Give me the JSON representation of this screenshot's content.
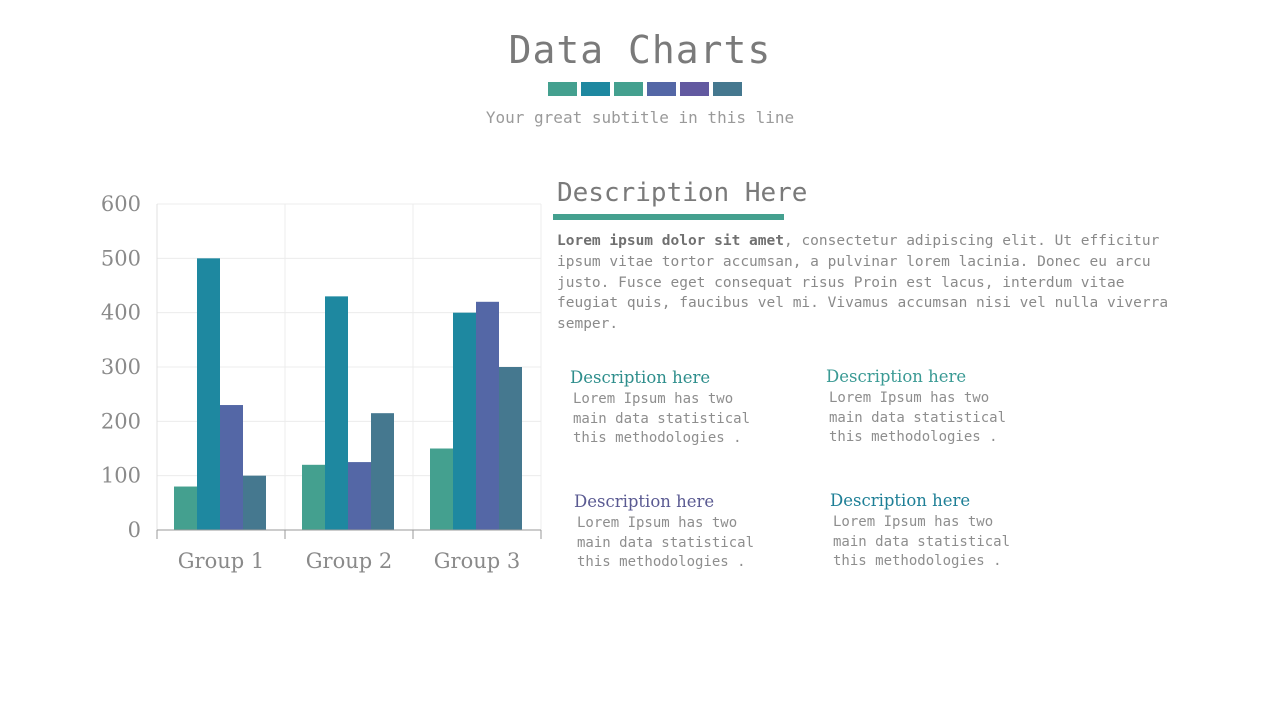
{
  "header": {
    "title": "Data Charts",
    "subtitle": "Your great subtitle in this line",
    "swatch_colors": [
      "#44a08f",
      "#1e88a0",
      "#44a08f",
      "#5467a6",
      "#6259a0",
      "#45788f"
    ]
  },
  "description": {
    "heading": "Description Here",
    "body_bold": "Lorem ipsum dolor sit amet",
    "body_rest": ", consectetur adipiscing elit. Ut efficitur ipsum vitae tortor accumsan, a pulvinar lorem lacinia. Donec eu arcu justo. Fusce eget consequat risus Proin est lacus, interdum vitae feugiat quis, faucibus vel mi.  Vivamus accumsan nisi vel nulla viverra semper."
  },
  "cards": [
    {
      "title": "Description here",
      "text": "Lorem Ipsum has two\nmain data statistical\nthis methodologies .",
      "color": "#2e8e8c"
    },
    {
      "title": "Description here",
      "text": "Lorem Ipsum has two\nmain data statistical\nthis methodologies .",
      "color": "#3a9a94"
    },
    {
      "title": "Description here",
      "text": "Lorem Ipsum has two\nmain data statistical\nthis methodologies .",
      "color": "#5a5a92"
    },
    {
      "title": "Description here",
      "text": "Lorem Ipsum has two\nmain data statistical\nthis methodologies .",
      "color": "#1e7f96"
    }
  ],
  "chart_data": {
    "type": "bar",
    "categories": [
      "Group 1",
      "Group 2",
      "Group 3"
    ],
    "series": [
      {
        "values": [
          80,
          120,
          150
        ],
        "color": "#44a08f"
      },
      {
        "values": [
          500,
          430,
          400
        ],
        "color": "#1e88a0"
      },
      {
        "values": [
          230,
          125,
          420
        ],
        "color": "#5467a6"
      },
      {
        "values": [
          100,
          215,
          300
        ],
        "color": "#45788f"
      }
    ],
    "yticks": [
      0,
      100,
      200,
      300,
      400,
      500,
      600
    ],
    "ylim": [
      0,
      600
    ],
    "grid": true,
    "legend": "none"
  }
}
